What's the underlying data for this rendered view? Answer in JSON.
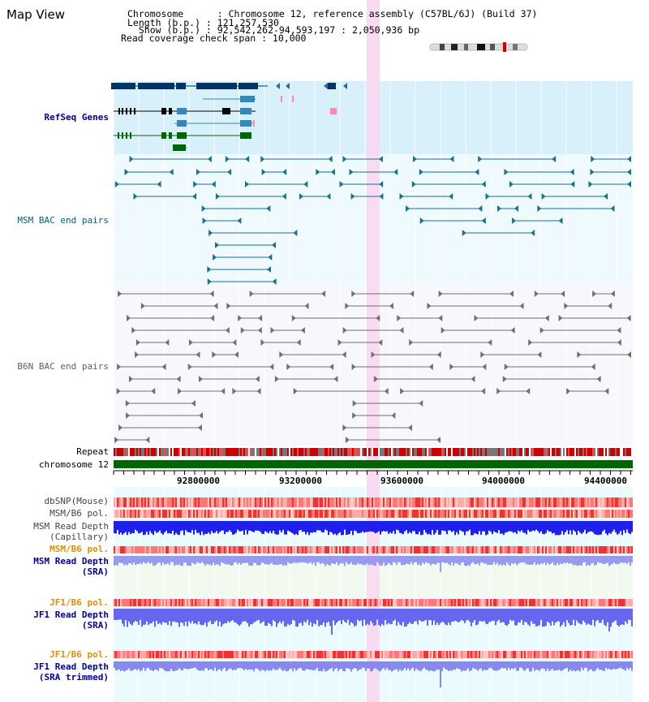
{
  "view_title": "Map View",
  "info": {
    "line1": "Chromosome      : Chromosome 12, reference assembly (C57BL/6J) (Build 37)",
    "line2": "Length (b.p.) : 121,257,530",
    "line3": "  Show (b.p.) : 92,542,262-94,593,197 : 2,050,936 bp",
    "line4": "Read coverage check span : 10,000"
  },
  "tracks": {
    "refseq": "RefSeq Genes",
    "msm_bac": "MSM BAC end pairs",
    "b6n_bac": "B6N BAC end pairs",
    "repeat": "Repeat",
    "chromosome": "chromosome 12",
    "dbsnp": "dbSNP(Mouse)",
    "msm_b6_pol": "MSM/B6 pol.",
    "msm_depth_cap_1": "MSM Read Depth",
    "msm_depth_cap_2": "(Capillary)",
    "msm_b6_pol_2": "MSM/B6 pol.",
    "msm_depth_sra_1": "MSM Read Depth",
    "msm_depth_sra_2": "(SRA)",
    "jf1_b6_pol": "JF1/B6 pol.",
    "jf1_depth_sra_1": "JF1 Read Depth",
    "jf1_depth_sra_2": "(SRA)",
    "jf1_b6_pol_2": "JF1/B6 pol.",
    "jf1_depth_trim_1": "JF1 Read Depth",
    "jf1_depth_trim_2": "(SRA trimmed)"
  },
  "axis": {
    "ticks": [
      "92800000",
      "93200000",
      "93600000",
      "94000000",
      "94400000"
    ]
  },
  "colors": {
    "refseq_bg": "#d8f0fa",
    "msm_label": "#006080",
    "b6n_label": "#606060",
    "refseq_label": "#000080",
    "pol_label": "#e09000",
    "depth_label": "#0000a0",
    "highlight": "#f8d8f0",
    "chrom_green": "#006600"
  }
}
